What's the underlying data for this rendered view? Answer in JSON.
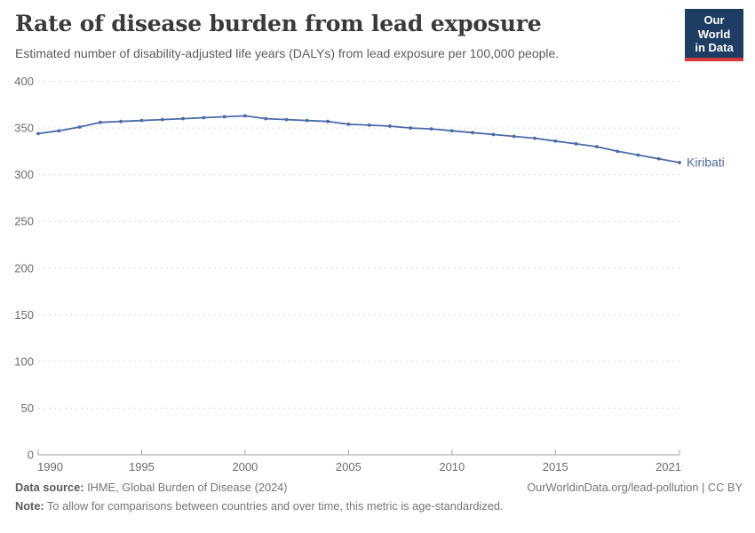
{
  "header": {
    "title": "Rate of disease burden from lead exposure",
    "subtitle": "Estimated number of disability-adjusted life years (DALYs) from lead exposure per 100,000 people.",
    "logo_line1": "Our World",
    "logo_line2": "in Data"
  },
  "colors": {
    "series_blue": "#4b69a5",
    "logo_navy": "#1d3d63",
    "logo_red": "#d5393b",
    "grid": "#d9d9d9",
    "axis": "#a3a3a3",
    "tick_text": "#6b6b6b"
  },
  "chart_data": {
    "type": "line",
    "title": "Rate of disease burden from lead exposure",
    "subtitle": "Estimated number of disability-adjusted life years (DALYs) from lead exposure per 100,000 people.",
    "xlabel": "",
    "ylabel": "",
    "xlim": [
      1990,
      2021
    ],
    "ylim": [
      0,
      400
    ],
    "x_ticks": [
      1990,
      1995,
      2000,
      2005,
      2010,
      2015,
      2021
    ],
    "y_ticks": [
      0,
      50,
      100,
      150,
      200,
      250,
      300,
      350,
      400
    ],
    "grid": "horizontal-dashed",
    "legend_position": "end-of-line-label",
    "series": [
      {
        "name": "Kiribati",
        "color": "#4b69a5",
        "end_label": "Kiribati",
        "x": [
          1990,
          1991,
          1992,
          1993,
          1994,
          1995,
          1996,
          1997,
          1998,
          1999,
          2000,
          2001,
          2002,
          2003,
          2004,
          2005,
          2006,
          2007,
          2008,
          2009,
          2010,
          2011,
          2012,
          2013,
          2014,
          2015,
          2016,
          2017,
          2018,
          2019,
          2020,
          2021
        ],
        "values": [
          344,
          347,
          351,
          356,
          357,
          358,
          359,
          360,
          361,
          362,
          363,
          360,
          359,
          358,
          357,
          354,
          353,
          352,
          350,
          349,
          347,
          345,
          343,
          341,
          339,
          336,
          333,
          330,
          325,
          321,
          317,
          313
        ]
      }
    ]
  },
  "footer": {
    "datasource_label": "Data source:",
    "datasource_text": " IHME, Global Burden of Disease (2024)",
    "link": "OurWorldinData.org/lead-pollution | CC BY",
    "note_label": "Note:",
    "note_text": " To allow for comparisons between countries and over time, this metric is age-standardized."
  }
}
